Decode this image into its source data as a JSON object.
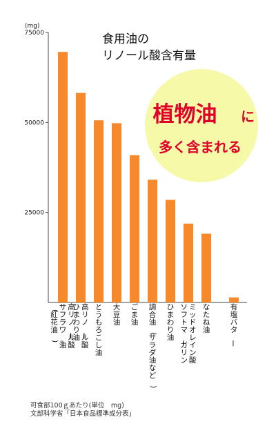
{
  "chart_data": {
    "type": "bar",
    "title_line1": "食用油の",
    "title_line2": "リノール酸含有量",
    "ylabel": "(mg)",
    "ylim": [
      0,
      75000
    ],
    "yticks": [
      "75000",
      "50000",
      "25000"
    ],
    "ytick_values": [
      75000,
      50000,
      25000
    ],
    "bar_color": "#f5892c",
    "categories": [
      [
        "高リノール酸",
        "サフラワー油",
        "(紅花油)"
      ],
      [
        "高リノール酸",
        "ひまわり油"
      ],
      [
        "とうもろこし油"
      ],
      [
        "大豆油"
      ],
      [
        "ごま油"
      ],
      [
        "調合油(サラダ油など)"
      ],
      [
        "ひまわり油"
      ],
      [
        "ミッドオレイン酸",
        "ソフトマーガリン"
      ],
      [
        "なたね油"
      ],
      [
        "有塩バター"
      ]
    ],
    "values": [
      69600,
      58200,
      50600,
      49800,
      40900,
      34100,
      28500,
      21900,
      19100,
      1400
    ]
  },
  "callout": {
    "line1_big": "植物油",
    "line1_small": "に",
    "line2": "多く含まれる",
    "circle_color": "#f6f9a8",
    "text_color": "#e0002a"
  },
  "footnote": {
    "line1": "可食部100ｇあたり(単位　mg)",
    "line2": "文部科学省「日本食品標準成分表」"
  }
}
